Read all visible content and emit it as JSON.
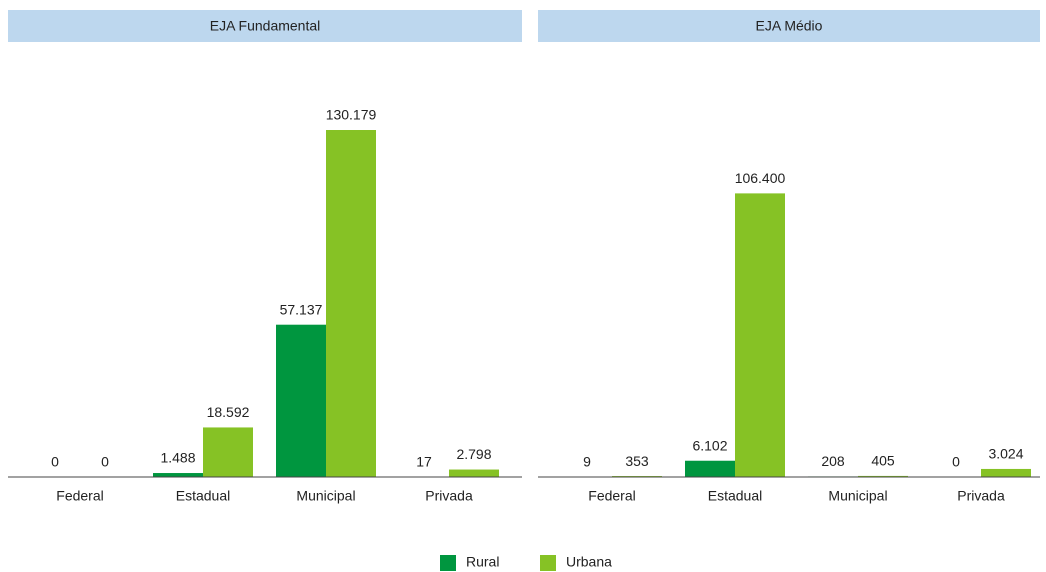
{
  "chart_data": [
    {
      "type": "bar",
      "title": "EJA Fundamental",
      "categories": [
        "Federal",
        "Estadual",
        "Municipal",
        "Privada"
      ],
      "series": [
        {
          "name": "Rural",
          "color": "#00963f",
          "values": [
            0,
            1488,
            57137,
            17
          ],
          "value_labels": [
            "0",
            "1.488",
            "57.137",
            "17"
          ]
        },
        {
          "name": "Urbana",
          "color": "#86c225",
          "values": [
            0,
            18592,
            130179,
            2798
          ],
          "value_labels": [
            "0",
            "18.592",
            "130.179",
            "2.798"
          ]
        }
      ]
    },
    {
      "type": "bar",
      "title": "EJA Médio",
      "categories": [
        "Federal",
        "Estadual",
        "Municipal",
        "Privada"
      ],
      "series": [
        {
          "name": "Rural",
          "color": "#00963f",
          "values": [
            9,
            6102,
            208,
            0
          ],
          "value_labels": [
            "9",
            "6.102",
            "208",
            "0"
          ]
        },
        {
          "name": "Urbana",
          "color": "#86c225",
          "values": [
            353,
            106400,
            405,
            3024
          ],
          "value_labels": [
            "353",
            "106.400",
            "405",
            "3.024"
          ]
        }
      ]
    }
  ]
}
